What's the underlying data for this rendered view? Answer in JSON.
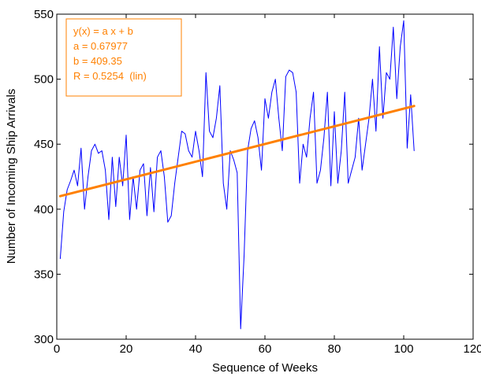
{
  "chart_data": {
    "type": "line",
    "title": "",
    "xlabel": "Sequence of Weeks",
    "ylabel": "Number of Incoming Ship Arrivals",
    "xlim": [
      0,
      120
    ],
    "ylim": [
      300,
      550
    ],
    "xticks": [
      0,
      20,
      40,
      60,
      80,
      100,
      120
    ],
    "yticks": [
      300,
      350,
      400,
      450,
      500,
      550
    ],
    "grid": false,
    "series": [
      {
        "name": "",
        "color": "#0000ff",
        "x": [
          1,
          2,
          3,
          4,
          5,
          6,
          7,
          8,
          9,
          10,
          11,
          12,
          13,
          14,
          15,
          16,
          17,
          18,
          19,
          20,
          21,
          22,
          23,
          24,
          25,
          26,
          27,
          28,
          29,
          30,
          31,
          32,
          33,
          34,
          35,
          36,
          37,
          38,
          39,
          40,
          41,
          42,
          43,
          44,
          45,
          46,
          47,
          48,
          49,
          50,
          51,
          52,
          53,
          54,
          55,
          56,
          57,
          58,
          59,
          60,
          61,
          62,
          63,
          64,
          65,
          66,
          67,
          68,
          69,
          70,
          71,
          72,
          73,
          74,
          75,
          76,
          77,
          78,
          79,
          80,
          81,
          82,
          83,
          84,
          85,
          86,
          87,
          88,
          89,
          90,
          91,
          92,
          93,
          94,
          95,
          96,
          97,
          98,
          99,
          100,
          101,
          102,
          103
        ],
        "y": [
          362,
          398,
          415,
          422,
          430,
          418,
          447,
          400,
          425,
          445,
          450,
          443,
          445,
          430,
          392,
          440,
          402,
          440,
          418,
          457,
          392,
          425,
          400,
          430,
          435,
          395,
          432,
          398,
          440,
          445,
          425,
          390,
          395,
          420,
          440,
          460,
          458,
          445,
          440,
          460,
          445,
          425,
          505,
          460,
          455,
          470,
          495,
          420,
          400,
          445,
          438,
          428,
          308,
          365,
          445,
          462,
          468,
          455,
          430,
          485,
          470,
          490,
          500,
          470,
          445,
          502,
          507,
          505,
          490,
          420,
          450,
          440,
          470,
          490,
          420,
          430,
          455,
          490,
          418,
          475,
          420,
          445,
          490,
          420,
          430,
          440,
          470,
          430,
          450,
          470,
          500,
          460,
          525,
          470,
          505,
          500,
          540,
          485,
          525,
          545,
          447,
          488,
          445
        ]
      },
      {
        "name": "",
        "color": "#ff8000",
        "x": [
          1,
          103
        ],
        "y": [
          410.03,
          479.37
        ]
      }
    ],
    "annotation": {
      "lines": [
        "y(x) = a x + b",
        "a = 0.67977",
        "b = 409.35",
        "R = 0.5254  (lin)"
      ],
      "color": "#ff8000"
    }
  },
  "colors": {
    "data_line": "#0000ff",
    "fit_line": "#ff8000",
    "fit_text": "#ff8000",
    "axes": "#000000"
  }
}
